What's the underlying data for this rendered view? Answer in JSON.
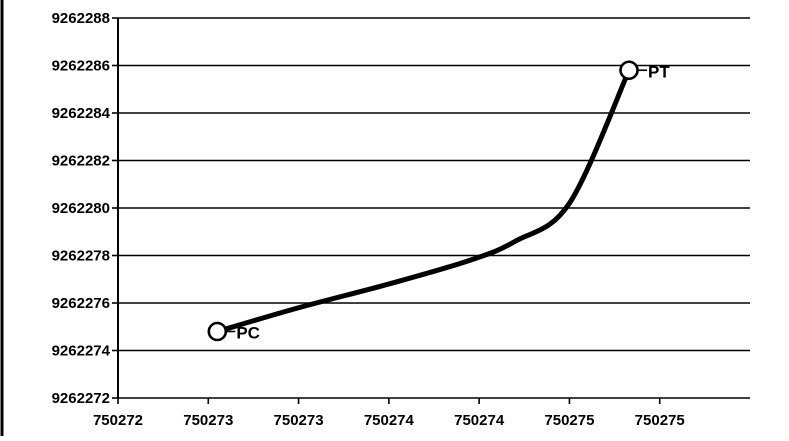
{
  "chart_data": {
    "type": "scatter",
    "title": "",
    "xlabel": "",
    "ylabel": "",
    "xlim": [
      750272,
      750275.5
    ],
    "ylim": [
      9262272,
      9262288
    ],
    "x_tick_values": [
      750272,
      750272.5,
      750273,
      750273.5,
      750274,
      750274.5,
      750275
    ],
    "x_tick_labels": [
      "750272",
      "750273",
      "750273",
      "750274",
      "750274",
      "750275",
      "750275"
    ],
    "y_tick_values": [
      9262272,
      9262274,
      9262276,
      9262278,
      9262280,
      9262282,
      9262284,
      9262286,
      9262288
    ],
    "y_tick_labels": [
      "9262272",
      "9262274",
      "9262276",
      "9262278",
      "9262280",
      "9262282",
      "9262284",
      "9262286",
      "9262288"
    ],
    "grid": {
      "horizontal": true,
      "vertical": false
    },
    "legend": "none",
    "line_color": "#000000",
    "series": [
      {
        "x": [
          750272.55,
          750273.0,
          750273.5,
          750273.95,
          750274.2,
          750274.5,
          750274.83
        ],
        "y": [
          9262274.8,
          9262275.8,
          9262276.8,
          9262277.8,
          9262278.6,
          9262280.2,
          9262285.8
        ]
      }
    ],
    "points": [
      {
        "label": "PC",
        "x": 750272.55,
        "y": 9262274.8
      },
      {
        "label": "PT",
        "x": 750274.83,
        "y": 9262285.8
      }
    ]
  }
}
